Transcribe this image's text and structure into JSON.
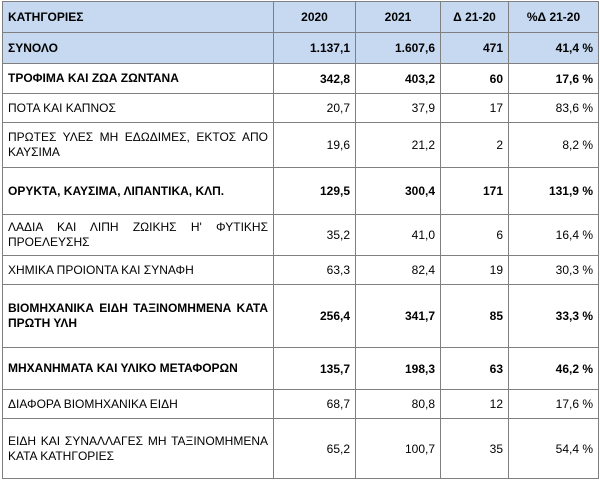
{
  "headers": {
    "category": "ΚΑΤΗΓΟΡΙΕΣ",
    "y2020": "2020",
    "y2021": "2021",
    "delta": "Δ 21-20",
    "pct": "%Δ 21-20"
  },
  "rows": [
    {
      "category": "ΣΥΝΟΛΟ",
      "y2020": "1.137,1",
      "y2021": "1.607,6",
      "delta": "471",
      "pct": "41,4 %"
    },
    {
      "category": "ΤΡΟΦΙΜΑ ΚΑΙ ΖΩΑ ΖΩΝΤΑΝΑ",
      "y2020": "342,8",
      "y2021": "403,2",
      "delta": "60",
      "pct": "17,6 %"
    },
    {
      "category": "ΠΟΤΑ ΚΑΙ ΚΑΠΝΟΣ",
      "y2020": "20,7",
      "y2021": "37,9",
      "delta": "17",
      "pct": "83,6 %"
    },
    {
      "category": "ΠΡΩΤΕΣ ΥΛΕΣ ΜΗ ΕΔΩΔΙΜΕΣ, ΕΚΤΟΣ ΑΠΟ ΚΑΥΣΙΜΑ",
      "y2020": "19,6",
      "y2021": "21,2",
      "delta": "2",
      "pct": "8,2 %"
    },
    {
      "category": "ΟΡΥΚΤΑ, ΚΑΥΣΙΜΑ, ΛΙΠΑΝΤΙΚΑ, ΚΛΠ.",
      "y2020": "129,5",
      "y2021": "300,4",
      "delta": "171",
      "pct": "131,9 %"
    },
    {
      "category": "ΛΑΔΙΑ ΚΑΙ ΛΙΠΗ ΖΩΙΚΗΣ Η' ΦΥΤΙΚΗΣ ΠΡΟΕΛΕΥΣΗΣ",
      "y2020": "35,2",
      "y2021": "41,0",
      "delta": "6",
      "pct": "16,4 %"
    },
    {
      "category": "ΧΗΜΙΚΑ ΠΡΟΙΟΝΤΑ ΚΑΙ ΣΥΝΑΦΗ",
      "y2020": "63,3",
      "y2021": "82,4",
      "delta": "19",
      "pct": "30,3 %"
    },
    {
      "category": "ΒΙΟΜΗΧΑΝΙΚΑ ΕΙΔΗ ΤΑΞΙΝΟΜΗΜΕΝΑ ΚΑΤΑ ΠΡΩΤΗ ΥΛΗ",
      "y2020": "256,4",
      "y2021": "341,7",
      "delta": "85",
      "pct": "33,3 %"
    },
    {
      "category": "ΜΗΧΑΝΗΜΑΤΑ ΚΑΙ ΥΛΙΚΟ ΜΕΤΑΦΟΡΩΝ",
      "y2020": "135,7",
      "y2021": "198,3",
      "delta": "63",
      "pct": "46,2 %"
    },
    {
      "category": "ΔΙΑΦΟΡΑ ΒΙΟΜΗΧΑΝΙΚΑ ΕΙΔΗ",
      "y2020": "68,7",
      "y2021": "80,8",
      "delta": "12",
      "pct": "17,6 %"
    },
    {
      "category": "ΕΙΔΗ ΚΑΙ ΣΥΝΑΛΛΑΓΕΣ ΜΗ ΤΑΞΙΝΟΜΗΜΕΝΑ ΚΑΤΑ ΚΑΤΗΓΟΡΙΕΣ",
      "y2020": "65,2",
      "y2021": "100,7",
      "delta": "35",
      "pct": "54,4 %"
    }
  ]
}
